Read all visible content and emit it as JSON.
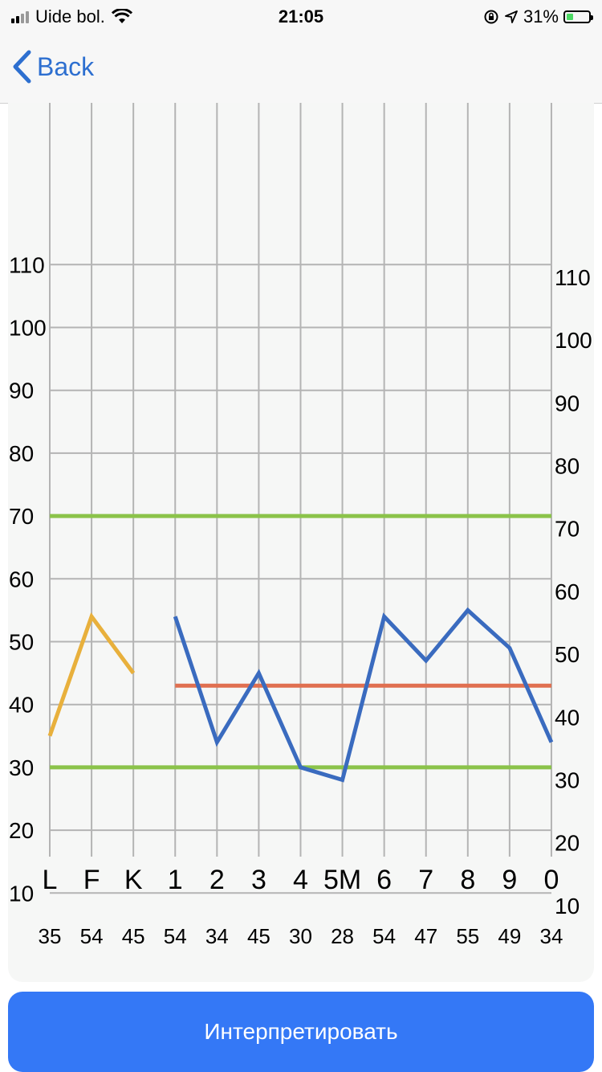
{
  "status_bar": {
    "carrier": "Uide bol.",
    "time": "21:05",
    "battery_percent": "31%",
    "battery_level": 0.31
  },
  "nav": {
    "back_label": "Back"
  },
  "chart_data": {
    "type": "line",
    "categories": [
      "L",
      "F",
      "K",
      "1",
      "2",
      "3",
      "4",
      "5M",
      "6",
      "7",
      "8",
      "9",
      "0"
    ],
    "value_labels": [
      "35",
      "54",
      "45",
      "54",
      "34",
      "45",
      "30",
      "28",
      "54",
      "47",
      "55",
      "49",
      "34"
    ],
    "left_axis": {
      "ticks": [
        10,
        20,
        30,
        40,
        50,
        60,
        70,
        80,
        90,
        100,
        110
      ],
      "range": [
        0,
        120
      ]
    },
    "right_axis": {
      "ticks": [
        10,
        20,
        30,
        40,
        50,
        60,
        70,
        80,
        90,
        100,
        110
      ],
      "range": [
        0,
        120
      ],
      "offset": -2
    },
    "grid": true,
    "series": [
      {
        "color": "#e8b03c",
        "points": [
          [
            0,
            35
          ],
          [
            1,
            54
          ],
          [
            2,
            45
          ]
        ]
      },
      {
        "color": "#3a6bbf",
        "points": [
          [
            3,
            54
          ],
          [
            4,
            34
          ],
          [
            5,
            45
          ],
          [
            6,
            30
          ],
          [
            7,
            28
          ],
          [
            8,
            54
          ],
          [
            9,
            47
          ],
          [
            10,
            55
          ],
          [
            11,
            49
          ],
          [
            12,
            34
          ]
        ]
      }
    ],
    "reference_lines": [
      {
        "value": 70,
        "from": 0,
        "to": 12,
        "color": "#8bc34a"
      },
      {
        "value": 30,
        "from": 0,
        "to": 12,
        "color": "#8bc34a"
      },
      {
        "value": 43,
        "from": 3,
        "to": 12,
        "color": "#e07050"
      }
    ]
  },
  "footer": {
    "interpret_label": "Интерпретировать"
  }
}
